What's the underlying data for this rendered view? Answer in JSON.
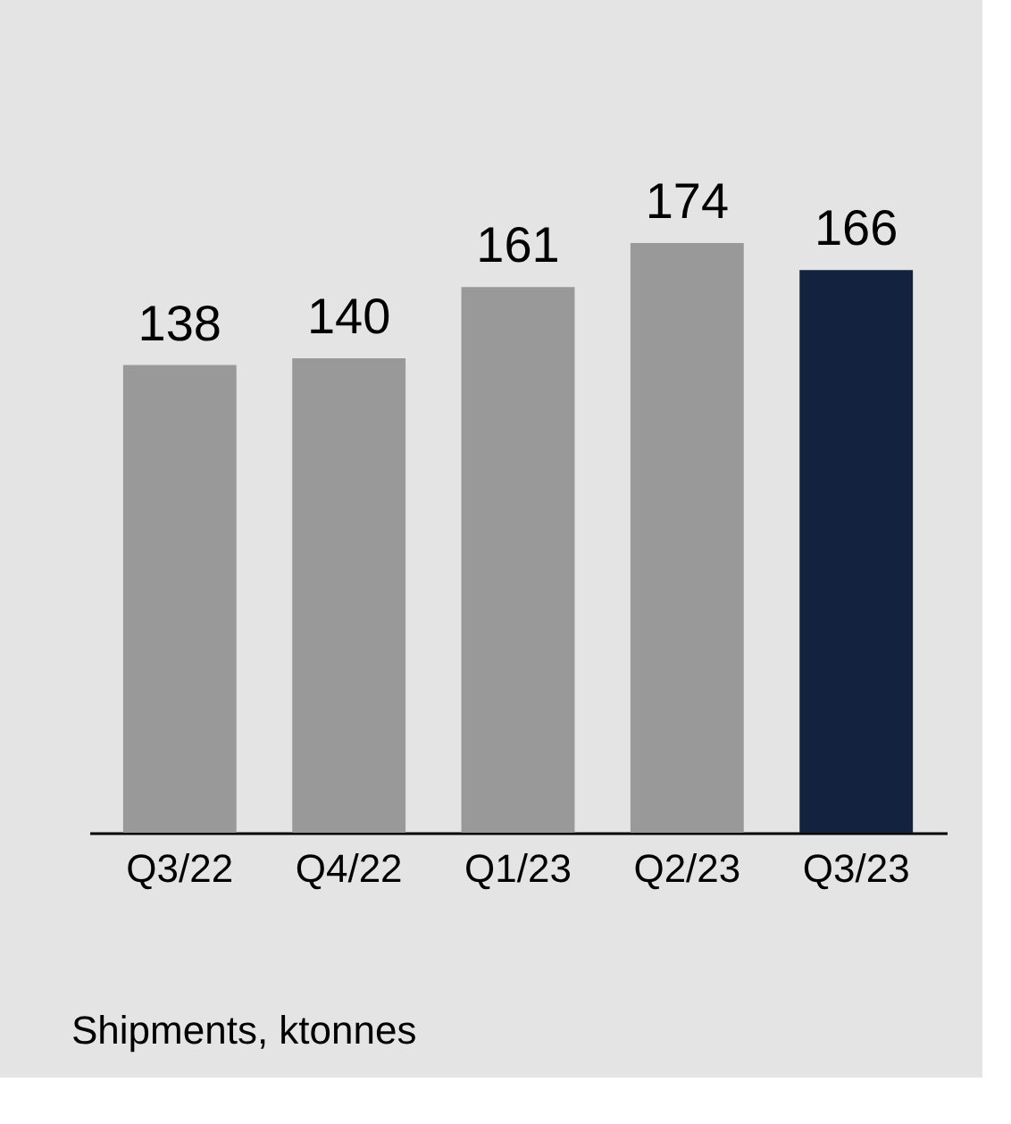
{
  "chart_data": {
    "type": "bar",
    "categories": [
      "Q3/22",
      "Q4/22",
      "Q1/23",
      "Q2/23",
      "Q3/23"
    ],
    "values": [
      138,
      140,
      161,
      174,
      166
    ],
    "colors": [
      "#999999",
      "#999999",
      "#999999",
      "#999999",
      "#12223f"
    ],
    "data_labels": true,
    "annotations": [
      "Shipments, ktonnes"
    ]
  }
}
